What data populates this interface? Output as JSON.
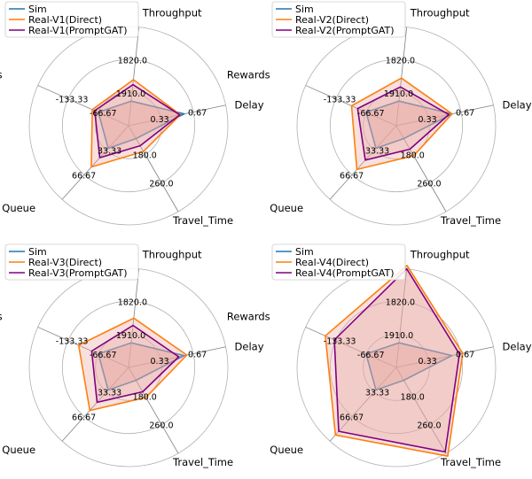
{
  "colors": {
    "sim": "#1f77b4",
    "direct": "#ff7f0e",
    "promptgat": "#800080",
    "fill": "#e7a6a0",
    "grid": "#b0b0b0",
    "axis": "#808080"
  },
  "chart_data": [
    {
      "type": "radar",
      "axes": [
        "Delay",
        "Throughput",
        "Rewards",
        "Queue",
        "Travel_Time"
      ],
      "tick_labels": {
        "Delay": [
          "0.33",
          "0.67"
        ],
        "Throughput": [
          "1910.0",
          "1820.0"
        ],
        "Rewards": [
          "-66.67",
          "-133.33"
        ],
        "Queue": [
          "33.33",
          "66.67"
        ],
        "Travel_Time": [
          "180.0",
          "260.0"
        ]
      },
      "rlim": [
        0,
        3
      ],
      "grid": true,
      "legend_position": "top-left",
      "series": [
        {
          "name": "Sim",
          "color_key": "sim",
          "values": [
            1.72,
            0.75,
            1.0,
            0.92,
            0.45
          ]
        },
        {
          "name": "Real-V1(Direct)",
          "color_key": "direct",
          "values": [
            1.6,
            1.4,
            1.2,
            1.68,
            0.9
          ]
        },
        {
          "name": "Real-V1(PromptGAT)",
          "color_key": "promptgat",
          "values": [
            1.58,
            1.25,
            1.12,
            1.3,
            0.7
          ]
        }
      ]
    },
    {
      "type": "radar",
      "axes": [
        "Delay",
        "Throughput",
        "Rewards",
        "Queue",
        "Travel_Time"
      ],
      "tick_labels": {
        "Delay": [
          "0.33",
          "0.67"
        ],
        "Throughput": [
          "1910.0",
          "1820.0"
        ],
        "Rewards": [
          "-66.67",
          "-133.33"
        ],
        "Queue": [
          "33.33",
          "66.67"
        ],
        "Travel_Time": [
          "180.0",
          "260.0"
        ]
      },
      "rlim": [
        0,
        3
      ],
      "grid": true,
      "legend_position": "top-left",
      "series": [
        {
          "name": "Sim",
          "color_key": "sim",
          "values": [
            1.72,
            0.75,
            1.0,
            0.92,
            0.45
          ]
        },
        {
          "name": "Real-V2(Direct)",
          "color_key": "direct",
          "values": [
            1.72,
            1.45,
            1.48,
            1.78,
            1.05
          ]
        },
        {
          "name": "Real-V2(PromptGAT)",
          "color_key": "promptgat",
          "values": [
            1.62,
            1.18,
            1.28,
            1.4,
            0.82
          ]
        }
      ]
    },
    {
      "type": "radar",
      "axes": [
        "Delay",
        "Throughput",
        "Rewards",
        "Queue",
        "Travel_Time"
      ],
      "tick_labels": {
        "Delay": [
          "0.33",
          "0.67"
        ],
        "Throughput": [
          "1910.0",
          "1820.0"
        ],
        "Rewards": [
          "-66.67",
          "-133.33"
        ],
        "Queue": [
          "33.33",
          "66.67"
        ],
        "Travel_Time": [
          "180.0",
          "260.0"
        ]
      },
      "rlim": [
        0,
        3
      ],
      "grid": true,
      "legend_position": "top-left",
      "series": [
        {
          "name": "Sim",
          "color_key": "sim",
          "values": [
            1.72,
            0.75,
            1.0,
            0.92,
            0.45
          ]
        },
        {
          "name": "Real-V3(Direct)",
          "color_key": "direct",
          "values": [
            1.8,
            1.5,
            1.65,
            1.75,
            1.05
          ]
        },
        {
          "name": "Real-V3(PromptGAT)",
          "color_key": "promptgat",
          "values": [
            1.55,
            1.28,
            1.22,
            1.42,
            0.85
          ]
        }
      ]
    },
    {
      "type": "radar",
      "axes": [
        "Delay",
        "Throughput",
        "Rewards",
        "Queue",
        "Travel_Time"
      ],
      "tick_labels": {
        "Delay": [
          "0.33",
          "0.67"
        ],
        "Throughput": [
          "1910.0",
          "1820.0"
        ],
        "Rewards": [
          "-66.67",
          "-133.33"
        ],
        "Queue": [
          "33.33",
          "66.67"
        ],
        "Travel_Time": [
          "180.0",
          "260.0"
        ]
      },
      "rlim": [
        0,
        3
      ],
      "grid": true,
      "legend_position": "top-left",
      "series": [
        {
          "name": "Sim",
          "color_key": "sim",
          "values": [
            1.72,
            0.75,
            1.0,
            0.92,
            0.45
          ]
        },
        {
          "name": "Real-V4(Direct)",
          "color_key": "direct",
          "values": [
            2.05,
            3.1,
            2.35,
            2.75,
            3.1
          ]
        },
        {
          "name": "Real-V4(PromptGAT)",
          "color_key": "promptgat",
          "values": [
            1.95,
            3.0,
            2.05,
            2.6,
            2.95
          ]
        }
      ]
    }
  ]
}
